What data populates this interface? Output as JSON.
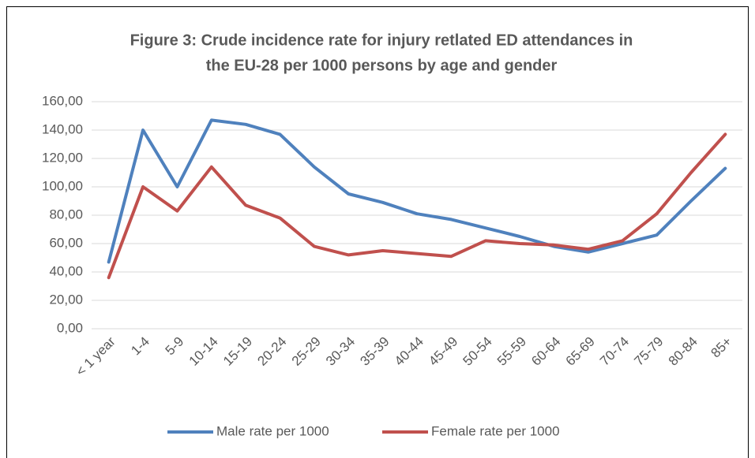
{
  "chart_data": {
    "type": "line",
    "title": [
      "Figure 3: Crude incidence rate for injury retlated ED attendances in",
      "the EU-28 per 1000 persons by age and gender"
    ],
    "categories": [
      "< 1 year",
      "1-4",
      "5-9",
      "10-14",
      "15-19",
      "20-24",
      "25-29",
      "30-34",
      "35-39",
      "40-44",
      "45-49",
      "50-54",
      "55-59",
      "60-64",
      "65-69",
      "70-74",
      "75-79",
      "80-84",
      "85+"
    ],
    "series": [
      {
        "name": "Male rate per 1000",
        "color": "#4f81bd",
        "values": [
          47,
          140,
          100,
          147,
          144,
          137,
          114,
          95,
          89,
          81,
          77,
          71,
          65,
          58,
          54,
          60,
          66,
          90,
          113
        ]
      },
      {
        "name": "Female rate per 1000",
        "color": "#c0504d",
        "values": [
          36,
          100,
          83,
          114,
          87,
          78,
          58,
          52,
          55,
          53,
          51,
          62,
          60,
          59,
          56,
          62,
          81,
          110,
          137
        ]
      }
    ],
    "ylim": [
      0,
      160
    ],
    "yticks": [
      {
        "value": 0,
        "label": "0,00"
      },
      {
        "value": 20,
        "label": "20,00"
      },
      {
        "value": 40,
        "label": "40,00"
      },
      {
        "value": 60,
        "label": "60,00"
      },
      {
        "value": 80,
        "label": "80,00"
      },
      {
        "value": 100,
        "label": "100,00"
      },
      {
        "value": 120,
        "label": "120,00"
      },
      {
        "value": 140,
        "label": "140,00"
      },
      {
        "value": 160,
        "label": "160,00"
      }
    ],
    "grid": true,
    "legend": "bottom"
  }
}
